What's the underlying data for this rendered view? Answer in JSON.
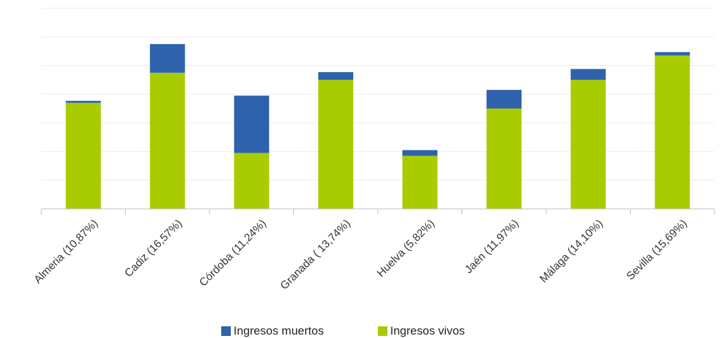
{
  "chart_data": {
    "type": "bar",
    "stacked": true,
    "categories": [
      "Almeria (10,87%)",
      "Cadiz (16,57%)",
      "Córdoba (11,24%)",
      "Granada ( 13,74%)",
      "Huelva (5,82%)",
      "Jaén (11,97%)",
      "Málaga (14,10%)",
      "Sevilla (15,69%)"
    ],
    "series": [
      {
        "name": "Ingresos vivos",
        "color": "#a8cc00",
        "values": [
          3.7,
          4.75,
          1.95,
          4.5,
          1.85,
          3.5,
          4.5,
          5.35
        ]
      },
      {
        "name": "Ingresos muertos",
        "color": "#2f62ad",
        "values": [
          0.07,
          1.0,
          2.0,
          0.27,
          0.2,
          0.65,
          0.38,
          0.12
        ]
      }
    ],
    "ylim": [
      0,
      7
    ],
    "grid": true,
    "legend_position": "bottom",
    "y_tick_labels_shown": false
  }
}
